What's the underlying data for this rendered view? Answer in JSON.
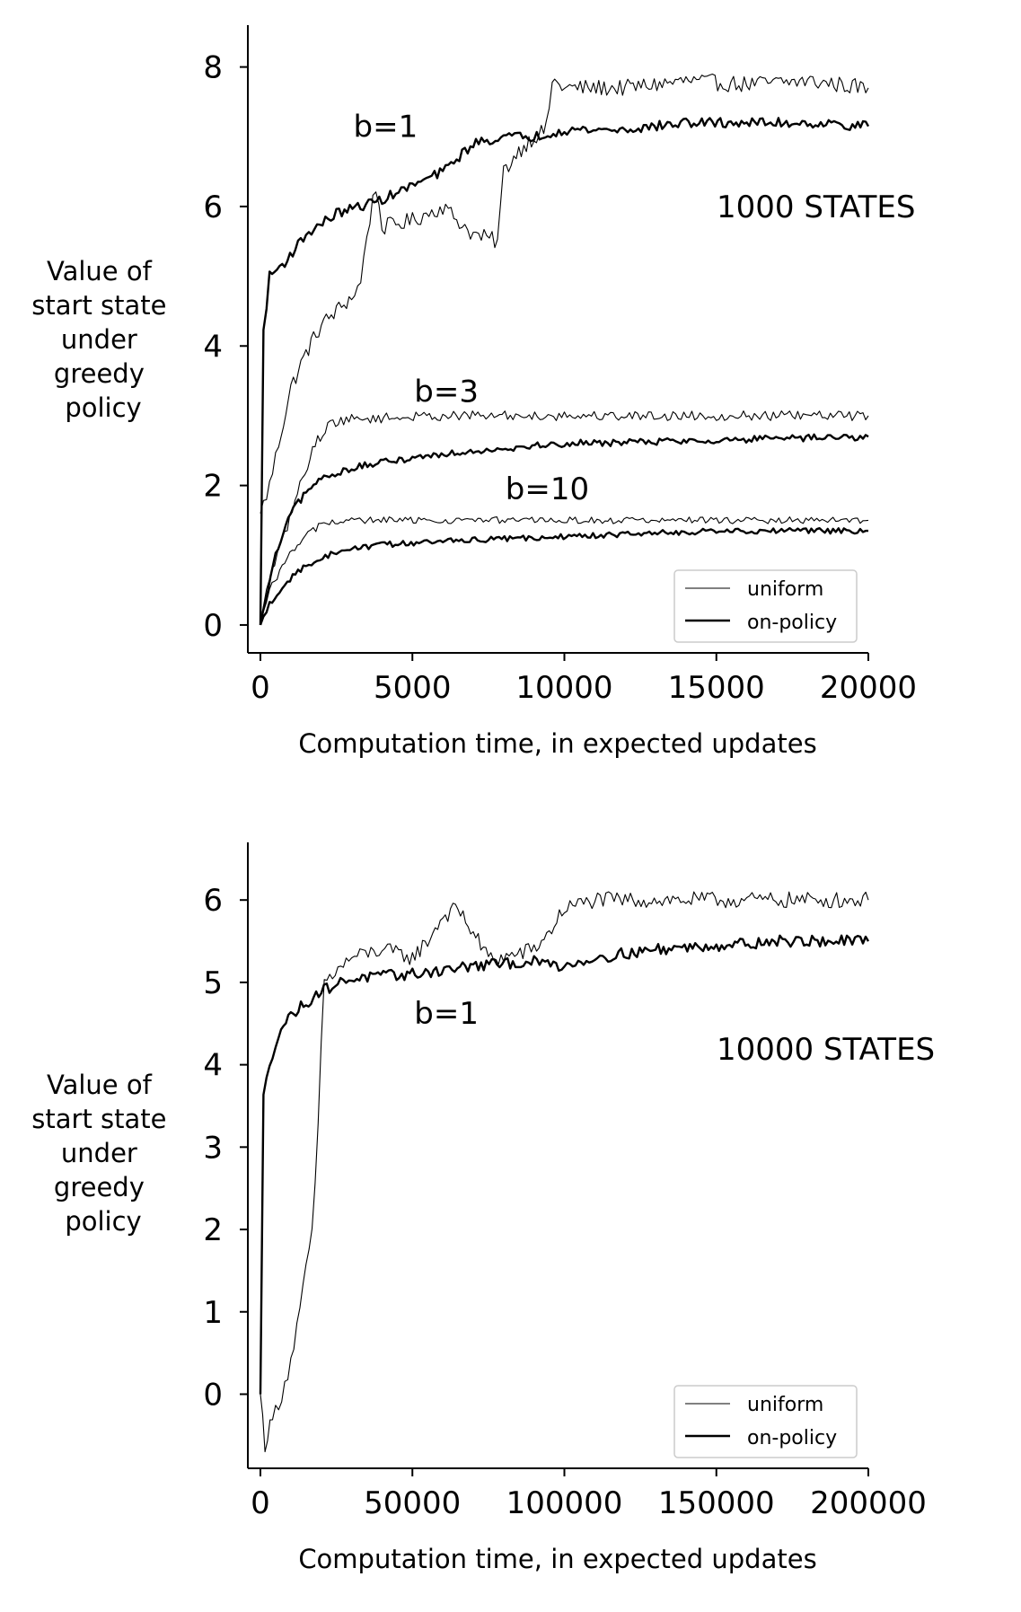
{
  "chart_data": [
    {
      "type": "line",
      "annotation_title": "1000 STATES",
      "xlabel": "Computation time, in expected updates",
      "ylabel": [
        "Value of",
        "start state",
        "under",
        "greedy",
        "policy"
      ],
      "xlim": [
        0,
        20000
      ],
      "ylim": [
        -0.4,
        8.6
      ],
      "xticks": [
        0,
        5000,
        10000,
        15000,
        20000
      ],
      "yticks": [
        0,
        2,
        4,
        6,
        8
      ],
      "legend": {
        "position": "lower-right",
        "entries": [
          "uniform",
          "on-policy"
        ]
      },
      "branch_labels": [
        {
          "text": "b=1",
          "x": 3000,
          "y": 7.0
        },
        {
          "text": "b=3",
          "x": 5000,
          "y": 3.2
        },
        {
          "text": "b=10",
          "x": 8000,
          "y": 1.8
        }
      ],
      "series": [
        {
          "kind": "uniform",
          "group": "b=1",
          "noise": 0.12,
          "points": [
            [
              0,
              1.6
            ],
            [
              300,
              2.0
            ],
            [
              600,
              2.6
            ],
            [
              1000,
              3.4
            ],
            [
              1500,
              3.9
            ],
            [
              2000,
              4.3
            ],
            [
              2500,
              4.5
            ],
            [
              3000,
              4.7
            ],
            [
              3300,
              4.9
            ],
            [
              3500,
              5.6
            ],
            [
              3800,
              6.3
            ],
            [
              4000,
              5.7
            ],
            [
              5000,
              5.8
            ],
            [
              6000,
              6.0
            ],
            [
              7000,
              5.6
            ],
            [
              7800,
              5.5
            ],
            [
              8000,
              6.5
            ],
            [
              8500,
              6.8
            ],
            [
              9000,
              7.0
            ],
            [
              9400,
              7.1
            ],
            [
              9600,
              7.8
            ],
            [
              10000,
              7.7
            ],
            [
              12000,
              7.7
            ],
            [
              14000,
              7.8
            ],
            [
              16000,
              7.75
            ],
            [
              18000,
              7.8
            ],
            [
              20000,
              7.7
            ]
          ]
        },
        {
          "kind": "on-policy",
          "group": "b=1",
          "noise": 0.07,
          "points": [
            [
              0,
              0.0
            ],
            [
              100,
              4.2
            ],
            [
              300,
              5.0
            ],
            [
              800,
              5.2
            ],
            [
              1500,
              5.6
            ],
            [
              2500,
              5.9
            ],
            [
              4000,
              6.1
            ],
            [
              5000,
              6.3
            ],
            [
              6000,
              6.5
            ],
            [
              7000,
              6.9
            ],
            [
              8000,
              7.0
            ],
            [
              9000,
              7.0
            ],
            [
              10000,
              7.1
            ],
            [
              12000,
              7.1
            ],
            [
              14000,
              7.2
            ],
            [
              16000,
              7.2
            ],
            [
              18000,
              7.2
            ],
            [
              20000,
              7.15
            ]
          ]
        },
        {
          "kind": "uniform",
          "group": "b=3",
          "noise": 0.07,
          "points": [
            [
              0,
              0.0
            ],
            [
              300,
              0.7
            ],
            [
              800,
              1.3
            ],
            [
              1300,
              2.0
            ],
            [
              1800,
              2.6
            ],
            [
              2300,
              2.9
            ],
            [
              3000,
              2.95
            ],
            [
              6000,
              3.0
            ],
            [
              10000,
              3.0
            ],
            [
              15000,
              3.0
            ],
            [
              20000,
              3.0
            ]
          ]
        },
        {
          "kind": "on-policy",
          "group": "b=3",
          "noise": 0.05,
          "points": [
            [
              0,
              0.0
            ],
            [
              500,
              1.0
            ],
            [
              1000,
              1.6
            ],
            [
              1500,
              1.9
            ],
            [
              2000,
              2.1
            ],
            [
              3000,
              2.25
            ],
            [
              5000,
              2.4
            ],
            [
              7000,
              2.5
            ],
            [
              10000,
              2.6
            ],
            [
              15000,
              2.65
            ],
            [
              20000,
              2.7
            ]
          ]
        },
        {
          "kind": "uniform",
          "group": "b=10",
          "noise": 0.05,
          "points": [
            [
              0,
              0.0
            ],
            [
              300,
              0.5
            ],
            [
              800,
              0.9
            ],
            [
              1300,
              1.2
            ],
            [
              2000,
              1.45
            ],
            [
              3000,
              1.5
            ],
            [
              6000,
              1.5
            ],
            [
              10000,
              1.5
            ],
            [
              15000,
              1.5
            ],
            [
              20000,
              1.5
            ]
          ]
        },
        {
          "kind": "on-policy",
          "group": "b=10",
          "noise": 0.04,
          "points": [
            [
              0,
              0.0
            ],
            [
              300,
              0.3
            ],
            [
              800,
              0.6
            ],
            [
              1500,
              0.85
            ],
            [
              2500,
              1.05
            ],
            [
              4000,
              1.15
            ],
            [
              6000,
              1.2
            ],
            [
              9000,
              1.25
            ],
            [
              12000,
              1.3
            ],
            [
              15000,
              1.35
            ],
            [
              20000,
              1.35
            ]
          ]
        }
      ]
    },
    {
      "type": "line",
      "annotation_title": "10000 STATES",
      "xlabel": "Computation time, in expected updates",
      "ylabel": [
        "Value of",
        "start state",
        "under",
        "greedy",
        "policy"
      ],
      "xlim": [
        0,
        200000
      ],
      "ylim": [
        -0.9,
        6.7
      ],
      "xticks": [
        0,
        50000,
        100000,
        150000,
        200000
      ],
      "yticks": [
        0,
        1,
        2,
        3,
        4,
        5,
        6
      ],
      "legend": {
        "position": "lower-right",
        "entries": [
          "uniform",
          "on-policy"
        ]
      },
      "branch_labels": [
        {
          "text": "b=1",
          "x": 50000,
          "y": 4.5
        }
      ],
      "series": [
        {
          "kind": "uniform",
          "group": "b=1",
          "noise": 0.1,
          "points": [
            [
              0,
              0.0
            ],
            [
              1500,
              -0.6
            ],
            [
              4000,
              -0.3
            ],
            [
              7000,
              0.0
            ],
            [
              10000,
              0.4
            ],
            [
              13000,
              1.0
            ],
            [
              15000,
              1.5
            ],
            [
              17000,
              2.0
            ],
            [
              18000,
              2.5
            ],
            [
              19000,
              3.2
            ],
            [
              20000,
              4.3
            ],
            [
              21000,
              5.0
            ],
            [
              30000,
              5.3
            ],
            [
              40000,
              5.4
            ],
            [
              50000,
              5.3
            ],
            [
              55000,
              5.5
            ],
            [
              60000,
              5.8
            ],
            [
              65000,
              5.9
            ],
            [
              70000,
              5.6
            ],
            [
              75000,
              5.3
            ],
            [
              80000,
              5.3
            ],
            [
              90000,
              5.4
            ],
            [
              95000,
              5.6
            ],
            [
              100000,
              5.9
            ],
            [
              110000,
              6.0
            ],
            [
              120000,
              6.0
            ],
            [
              140000,
              6.0
            ],
            [
              160000,
              6.0
            ],
            [
              180000,
              6.0
            ],
            [
              200000,
              6.0
            ]
          ]
        },
        {
          "kind": "on-policy",
          "group": "b=1",
          "noise": 0.07,
          "points": [
            [
              0,
              0.0
            ],
            [
              1000,
              3.6
            ],
            [
              3000,
              4.0
            ],
            [
              6000,
              4.4
            ],
            [
              10000,
              4.6
            ],
            [
              15000,
              4.75
            ],
            [
              20000,
              4.9
            ],
            [
              30000,
              5.05
            ],
            [
              50000,
              5.1
            ],
            [
              70000,
              5.2
            ],
            [
              90000,
              5.25
            ],
            [
              100000,
              5.2
            ],
            [
              110000,
              5.3
            ],
            [
              130000,
              5.4
            ],
            [
              150000,
              5.45
            ],
            [
              170000,
              5.5
            ],
            [
              200000,
              5.5
            ]
          ]
        }
      ]
    }
  ]
}
